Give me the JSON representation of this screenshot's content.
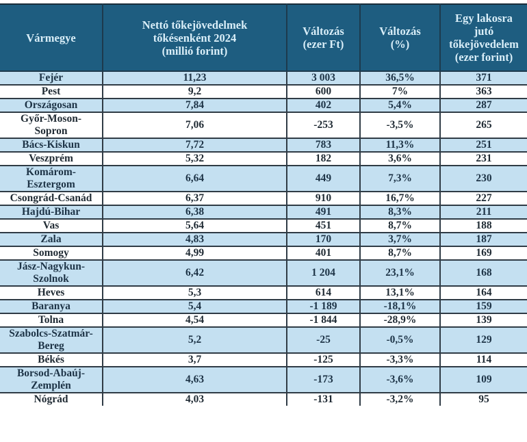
{
  "table": {
    "headers": [
      "Vármegye",
      "Nettó tőkejövedelmek tőkésenként 2024 (millió forint)",
      "Változás (ezer Ft)",
      "Változás (%)",
      "Egy lakosra jutó tőkejövedelem (ezer forint)"
    ],
    "header_lines": [
      [
        "Vármegye"
      ],
      [
        "Nettó tőkejövedelmek",
        "tőkésenként 2024",
        "(millió forint)"
      ],
      [
        "Változás",
        "(ezer Ft)"
      ],
      [
        "Változás",
        "(%)"
      ],
      [
        "Egy lakosra",
        "jutó",
        "tőkejövedelem",
        "(ezer forint)"
      ]
    ],
    "rows": [
      {
        "county": [
          "Fejér"
        ],
        "net_income": "11,23",
        "change_k": "3 003",
        "change_pct": "36,5%",
        "per_capita": "371"
      },
      {
        "county": [
          "Pest"
        ],
        "net_income": "9,2",
        "change_k": "600",
        "change_pct": "7%",
        "per_capita": "363"
      },
      {
        "county": [
          "Országosan"
        ],
        "net_income": "7,84",
        "change_k": "402",
        "change_pct": "5,4%",
        "per_capita": "287"
      },
      {
        "county": [
          "Győr-Moson-",
          "Sopron"
        ],
        "net_income": "7,06",
        "change_k": "-253",
        "change_pct": "-3,5%",
        "per_capita": "265"
      },
      {
        "county": [
          "Bács-Kiskun"
        ],
        "net_income": "7,72",
        "change_k": "783",
        "change_pct": "11,3%",
        "per_capita": "251"
      },
      {
        "county": [
          "Veszprém"
        ],
        "net_income": "5,32",
        "change_k": "182",
        "change_pct": "3,6%",
        "per_capita": "231"
      },
      {
        "county": [
          "Komárom-",
          "Esztergom"
        ],
        "net_income": "6,64",
        "change_k": "449",
        "change_pct": "7,3%",
        "per_capita": "230"
      },
      {
        "county": [
          "Csongrád-Csanád"
        ],
        "net_income": "6,37",
        "change_k": "910",
        "change_pct": "16,7%",
        "per_capita": "227"
      },
      {
        "county": [
          "Hajdú-Bihar"
        ],
        "net_income": "6,38",
        "change_k": "491",
        "change_pct": "8,3%",
        "per_capita": "211"
      },
      {
        "county": [
          "Vas"
        ],
        "net_income": "5,64",
        "change_k": "451",
        "change_pct": "8,7%",
        "per_capita": "188"
      },
      {
        "county": [
          "Zala"
        ],
        "net_income": "4,83",
        "change_k": "170",
        "change_pct": "3,7%",
        "per_capita": "187"
      },
      {
        "county": [
          "Somogy"
        ],
        "net_income": "4,99",
        "change_k": "401",
        "change_pct": "8,7%",
        "per_capita": "169"
      },
      {
        "county": [
          "Jász-Nagykun-",
          "Szolnok"
        ],
        "net_income": "6,42",
        "change_k": "1 204",
        "change_pct": "23,1%",
        "per_capita": "168"
      },
      {
        "county": [
          "Heves"
        ],
        "net_income": "5,3",
        "change_k": "614",
        "change_pct": "13,1%",
        "per_capita": "164"
      },
      {
        "county": [
          "Baranya"
        ],
        "net_income": "5,4",
        "change_k": "-1 189",
        "change_pct": "-18,1%",
        "per_capita": "159"
      },
      {
        "county": [
          "Tolna"
        ],
        "net_income": "4,54",
        "change_k": "-1 844",
        "change_pct": "-28,9%",
        "per_capita": "139"
      },
      {
        "county": [
          "Szabolcs-Szatmár-",
          "Bereg"
        ],
        "net_income": "5,2",
        "change_k": "-25",
        "change_pct": "-0,5%",
        "per_capita": "129"
      },
      {
        "county": [
          "Békés"
        ],
        "net_income": "3,7",
        "change_k": "-125",
        "change_pct": "-3,3%",
        "per_capita": "114"
      },
      {
        "county": [
          "Borsod-Abaúj-",
          "Zemplén"
        ],
        "net_income": "4,63",
        "change_k": "-173",
        "change_pct": "-3,6%",
        "per_capita": "109"
      },
      {
        "county": [
          "Nógrád"
        ],
        "net_income": "4,03",
        "change_k": "-131",
        "change_pct": "-3,2%",
        "per_capita": "95"
      }
    ]
  },
  "colors": {
    "header_bg": "#1e5d80",
    "header_text": "#d9eef8",
    "row_blue": "#c4e0f1",
    "row_white": "#ffffff",
    "border": "#2f3b45"
  }
}
